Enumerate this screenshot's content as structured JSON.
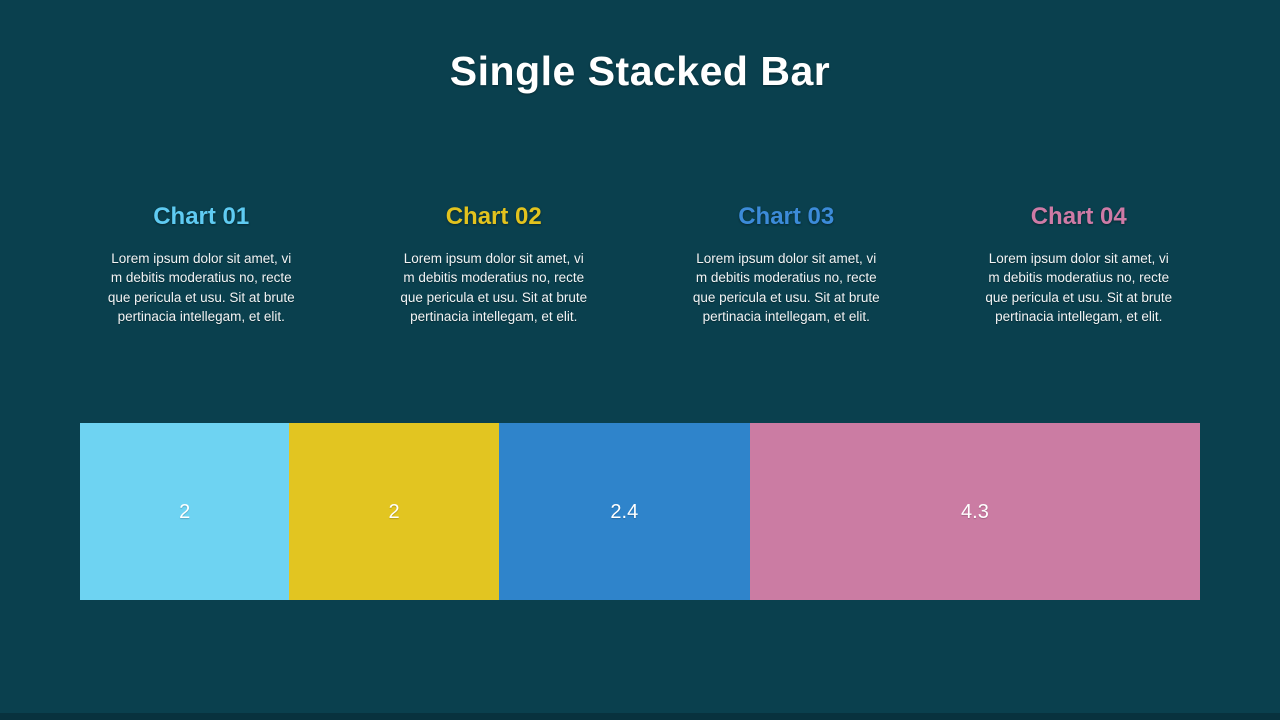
{
  "slide": {
    "title": "Single Stacked Bar",
    "background_color": "#0A404E",
    "footer_color": "#08323E",
    "title_color": "#FFFFFF",
    "body_text_color": "#F2F4F5"
  },
  "charts": [
    {
      "label": "Chart 01",
      "label_color": "#5FCBF2",
      "segment_color": "#6ED3F2",
      "value": 2,
      "value_label": "2",
      "description": "Lorem ipsum dolor sit amet, vi\nm debitis moderatius no, recte\nque pericula et usu. Sit at brute\npertinacia intellegam, et elit."
    },
    {
      "label": "Chart 02",
      "label_color": "#E2C31E",
      "segment_color": "#E2C521",
      "value": 2,
      "value_label": "2",
      "description": "Lorem ipsum dolor sit amet, vi\nm debitis moderatius no, recte\nque pericula et usu. Sit at brute\npertinacia intellegam, et elit."
    },
    {
      "label": "Chart 03",
      "label_color": "#3C8BD9",
      "segment_color": "#2F84CB",
      "value": 2.4,
      "value_label": "2.4",
      "description": "Lorem ipsum dolor sit amet, vi\nm debitis moderatius no, recte\nque pericula et usu. Sit at brute\npertinacia intellegam, et elit."
    },
    {
      "label": "Chart 04",
      "label_color": "#CE7BA6",
      "segment_color": "#CB7CA3",
      "value": 4.3,
      "value_label": "4.3",
      "description": "Lorem ipsum dolor sit amet, vi\nm debitis moderatius no, recte\nque pericula et usu. Sit at brute\npertinacia intellegam, et elit."
    }
  ],
  "chart_data": {
    "type": "bar",
    "variant": "single-stacked-horizontal",
    "title": "Single Stacked Bar",
    "categories": [
      "Chart 01",
      "Chart 02",
      "Chart 03",
      "Chart 04"
    ],
    "values": [
      2,
      2,
      2.4,
      4.3
    ],
    "value_labels": [
      "2",
      "2",
      "2.4",
      "4.3"
    ],
    "colors": [
      "#6ED3F2",
      "#E2C521",
      "#2F84CB",
      "#CB7CA3"
    ],
    "total": 10.7,
    "legend_position": "none",
    "axes_visible": false
  }
}
